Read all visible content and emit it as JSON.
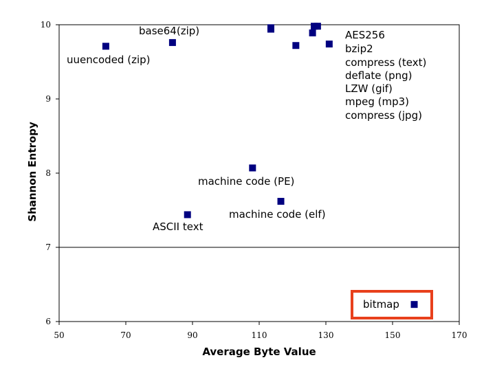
{
  "chart_data": {
    "type": "scatter",
    "xlabel": "Average Byte Value",
    "ylabel": "Shannon Entropy",
    "xlim": [
      50,
      170
    ],
    "ylim": [
      6,
      10
    ],
    "x_ticks": [
      50,
      70,
      90,
      110,
      130,
      150,
      170
    ],
    "y_ticks": [
      6,
      7,
      8,
      9,
      10
    ],
    "grid": false,
    "reference_line_y": 7,
    "highlight_color": "#e8401c",
    "point_color": "#000080",
    "points": [
      {
        "x": 64,
        "y": 9.71
      },
      {
        "x": 84,
        "y": 9.76
      },
      {
        "x": 113.5,
        "y": 9.96
      },
      {
        "x": 113.5,
        "y": 9.94
      },
      {
        "x": 121,
        "y": 9.72
      },
      {
        "x": 126,
        "y": 9.89
      },
      {
        "x": 126.5,
        "y": 9.98
      },
      {
        "x": 127.5,
        "y": 9.98
      },
      {
        "x": 131,
        "y": 9.74
      },
      {
        "x": 108,
        "y": 8.07
      },
      {
        "x": 116.5,
        "y": 7.62
      },
      {
        "x": 88.5,
        "y": 7.44
      },
      {
        "x": 156.5,
        "y": 6.23
      }
    ],
    "annotations": [
      "base64(zip)",
      "uuencoded (zip)",
      "AES256",
      "bzip2",
      "compress (text)",
      "deflate (png)",
      "LZW (gif)",
      "mpeg (mp3)",
      "compress (jpg)",
      "machine code (PE)",
      "machine code (elf)",
      "ASCII text",
      "bitmap"
    ]
  }
}
